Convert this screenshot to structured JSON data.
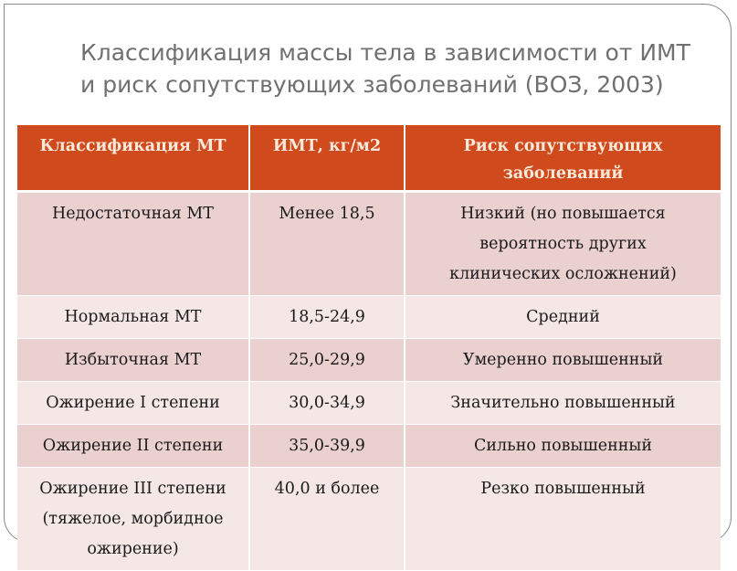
{
  "title": {
    "line1": "Классификация массы тела в зависимости от ИМТ",
    "line2": "и риск сопутствующих заболеваний (ВОЗ, 2003)"
  },
  "colors": {
    "header": "#cf4a1c",
    "row_dark": "#ead0ce",
    "row_light": "#f5e7e6"
  },
  "table": {
    "headers": [
      "Классификация МТ",
      "ИМТ, кг/м2",
      "Риск сопутствующих заболеваний"
    ],
    "rows": [
      [
        "Недостаточная МТ",
        "Менее 18,5",
        "Низкий (но повышается вероятность других клинических осложнений)"
      ],
      [
        "Нормальная МТ",
        "18,5-24,9",
        "Средний"
      ],
      [
        "Избыточная МТ",
        "25,0-29,9",
        "Умеренно повышенный"
      ],
      [
        "Ожирение I степени",
        "30,0-34,9",
        "Значительно повышенный"
      ],
      [
        "Ожирение II степени",
        "35,0-39,9",
        "Сильно повышенный"
      ],
      [
        "Ожирение III степени (тяжелое, морбидное ожирение)",
        "40,0 и более",
        "Резко повышенный"
      ]
    ]
  }
}
